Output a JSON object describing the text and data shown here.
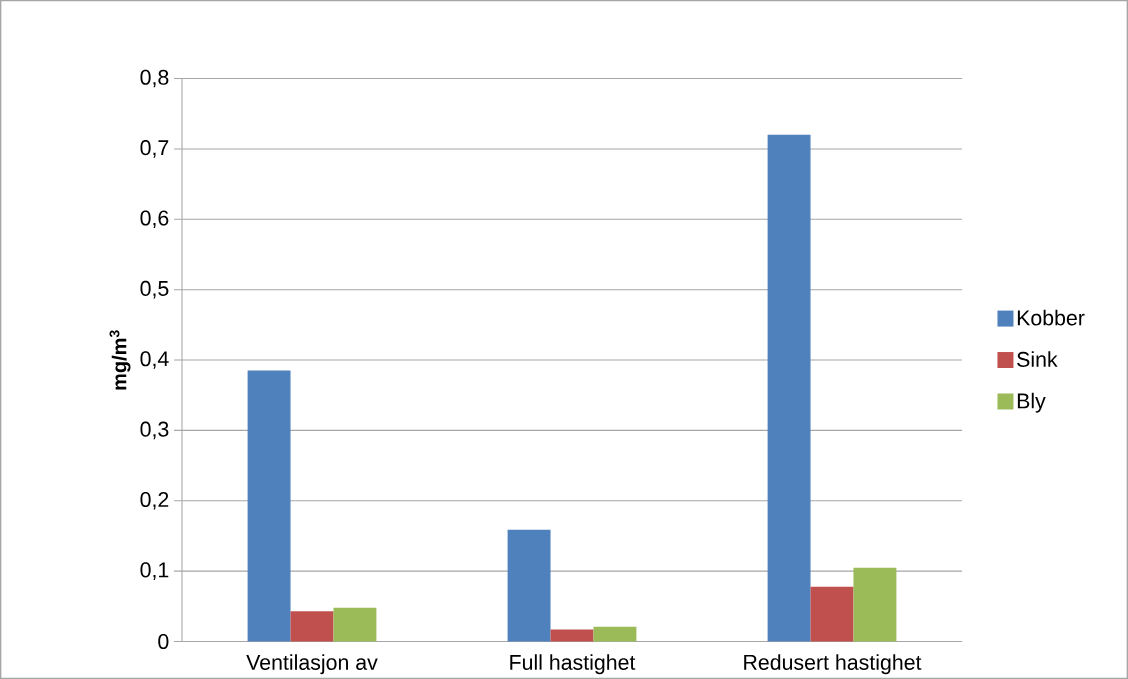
{
  "chart_data": {
    "type": "bar",
    "ylabel": "mg/m$^{3}$",
    "categories": [
      "Ventilasjon av",
      "Full hastighet",
      "Redusert hastighet"
    ],
    "series": [
      {
        "name": "Kobber",
        "color": "#4f81bd",
        "values": [
          0.385,
          0.159,
          0.72
        ]
      },
      {
        "name": "Sink",
        "color": "#c0504d",
        "values": [
          0.043,
          0.017,
          0.078
        ]
      },
      {
        "name": "Bly",
        "color": "#9bbb59",
        "values": [
          0.048,
          0.021,
          0.105
        ]
      }
    ],
    "ylim": [
      0,
      0.8
    ],
    "yticks": [
      {
        "value": 0,
        "label": "0"
      },
      {
        "value": 0.1,
        "label": "0,1"
      },
      {
        "value": 0.2,
        "label": "0,2"
      },
      {
        "value": 0.3,
        "label": "0,3"
      },
      {
        "value": 0.4,
        "label": "0,4"
      },
      {
        "value": 0.5,
        "label": "0,5"
      },
      {
        "value": 0.6,
        "label": "0,6"
      },
      {
        "value": 0.7,
        "label": "0,7"
      },
      {
        "value": 0.8,
        "label": "0,8"
      }
    ],
    "grid": "y",
    "legend": "right"
  }
}
